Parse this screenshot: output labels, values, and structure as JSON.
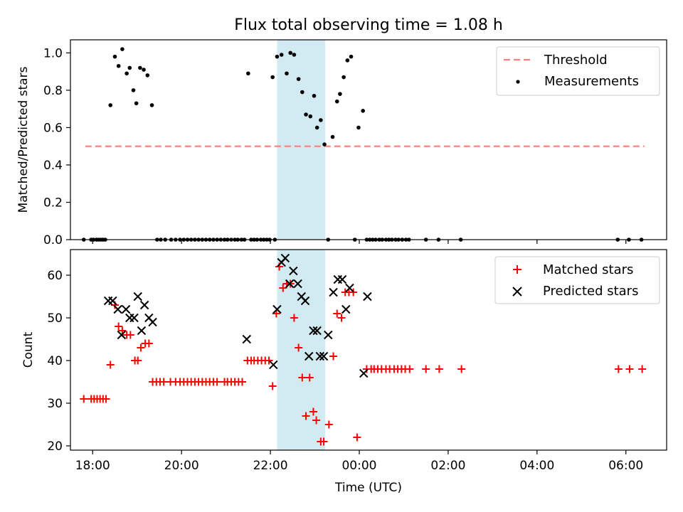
{
  "title": "Flux total observing time = 1.08 h",
  "colors": {
    "threshold": "#ff7f7f",
    "measurement": "#000000",
    "matched": "#ff0000",
    "predicted": "#000000",
    "highlight": "#add8e6"
  },
  "chart_data": [
    {
      "type": "scatter",
      "ylabel": "Matched/Predicted stars",
      "xlim": [
        "17:30",
        "06:55"
      ],
      "ylim": [
        0,
        1.07
      ],
      "yticks": [
        "0.0",
        "0.2",
        "0.4",
        "0.6",
        "0.8",
        "1.0"
      ],
      "highlight_span": [
        "22:09",
        "23:14"
      ],
      "legend": {
        "placement": "top-right",
        "entries": [
          "Threshold",
          "Measurements"
        ]
      },
      "threshold": {
        "name": "Threshold",
        "y": 0.5,
        "x": [
          "17:50",
          "06:25"
        ],
        "style": "dashed"
      },
      "series": [
        {
          "name": "Measurements",
          "marker": "dot",
          "points": [
            [
              "17:48",
              0
            ],
            [
              "17:58",
              0
            ],
            [
              "18:01",
              0
            ],
            [
              "18:05",
              0
            ],
            [
              "18:08",
              0
            ],
            [
              "18:11",
              0
            ],
            [
              "18:14",
              0
            ],
            [
              "18:17",
              0
            ],
            [
              "18:24",
              0.72
            ],
            [
              "18:30",
              0.98
            ],
            [
              "18:35",
              0.93
            ],
            [
              "18:40",
              1.02
            ],
            [
              "18:46",
              0.89
            ],
            [
              "18:50",
              0.92
            ],
            [
              "18:55",
              0.8
            ],
            [
              "18:59",
              0.73
            ],
            [
              "19:04",
              0.92
            ],
            [
              "19:09",
              0.91
            ],
            [
              "19:14",
              0.88
            ],
            [
              "19:20",
              0.72
            ],
            [
              "19:27",
              0
            ],
            [
              "19:32",
              0
            ],
            [
              "19:38",
              0
            ],
            [
              "19:46",
              0
            ],
            [
              "19:52",
              0
            ],
            [
              "19:58",
              0
            ],
            [
              "20:03",
              0
            ],
            [
              "20:08",
              0
            ],
            [
              "20:13",
              0
            ],
            [
              "20:18",
              0
            ],
            [
              "20:23",
              0
            ],
            [
              "20:28",
              0
            ],
            [
              "20:33",
              0
            ],
            [
              "20:38",
              0
            ],
            [
              "20:43",
              0
            ],
            [
              "20:48",
              0
            ],
            [
              "20:53",
              0
            ],
            [
              "20:58",
              0
            ],
            [
              "21:02",
              0
            ],
            [
              "21:07",
              0
            ],
            [
              "21:12",
              0
            ],
            [
              "21:16",
              0
            ],
            [
              "21:21",
              0
            ],
            [
              "21:25",
              0
            ],
            [
              "21:30",
              0.89
            ],
            [
              "21:34",
              0
            ],
            [
              "21:38",
              0
            ],
            [
              "21:42",
              0
            ],
            [
              "21:47",
              0
            ],
            [
              "21:51",
              0
            ],
            [
              "21:55",
              0
            ],
            [
              "21:59",
              0
            ],
            [
              "22:03",
              0.87
            ],
            [
              "22:06",
              0
            ],
            [
              "22:09",
              0.98
            ],
            [
              "22:15",
              0.99
            ],
            [
              "22:22",
              0.89
            ],
            [
              "22:27",
              1.0
            ],
            [
              "22:32",
              0.99
            ],
            [
              "22:38",
              0.86
            ],
            [
              "22:43",
              0.79
            ],
            [
              "22:48",
              0.67
            ],
            [
              "22:54",
              0.66
            ],
            [
              "22:59",
              0.77
            ],
            [
              "23:03",
              0.6
            ],
            [
              "23:08",
              0.64
            ],
            [
              "23:13",
              0.51
            ],
            [
              "23:18",
              0
            ],
            [
              "23:24",
              0.55
            ],
            [
              "23:30",
              0.74
            ],
            [
              "23:34",
              0.78
            ],
            [
              "23:39",
              0.87
            ],
            [
              "23:44",
              0.96
            ],
            [
              "23:49",
              0.98
            ],
            [
              "23:54",
              0
            ],
            [
              "23:59",
              0.6
            ],
            [
              "00:05",
              0.69
            ],
            [
              "00:10",
              0
            ],
            [
              "00:14",
              0
            ],
            [
              "00:18",
              0
            ],
            [
              "00:22",
              0
            ],
            [
              "00:27",
              0
            ],
            [
              "00:31",
              0
            ],
            [
              "00:36",
              0
            ],
            [
              "00:40",
              0
            ],
            [
              "00:44",
              0
            ],
            [
              "00:49",
              0
            ],
            [
              "00:53",
              0
            ],
            [
              "00:58",
              0
            ],
            [
              "01:03",
              0
            ],
            [
              "01:07",
              0
            ],
            [
              "01:30",
              0
            ],
            [
              "01:47",
              0
            ],
            [
              "02:17",
              0
            ],
            [
              "05:49",
              0
            ],
            [
              "06:04",
              0
            ],
            [
              "06:21",
              0
            ]
          ]
        }
      ]
    },
    {
      "type": "scatter",
      "xlabel": "Time (UTC)",
      "ylabel": "Count",
      "xlim": [
        "17:30",
        "06:55"
      ],
      "ylim": [
        19,
        66
      ],
      "xticks": [
        "18:00",
        "20:00",
        "22:00",
        "00:00",
        "02:00",
        "04:00",
        "06:00"
      ],
      "yticks": [
        "20",
        "30",
        "40",
        "50",
        "60"
      ],
      "highlight_span": [
        "22:09",
        "23:14"
      ],
      "legend": {
        "placement": "top-right",
        "entries": [
          "Matched stars",
          "Predicted stars"
        ]
      },
      "series": [
        {
          "name": "Matched stars",
          "marker": "plus",
          "points": [
            [
              "17:48",
              31
            ],
            [
              "17:58",
              31
            ],
            [
              "18:02",
              31
            ],
            [
              "18:06",
              31
            ],
            [
              "18:10",
              31
            ],
            [
              "18:14",
              31
            ],
            [
              "18:18",
              31
            ],
            [
              "18:24",
              39
            ],
            [
              "18:30",
              53
            ],
            [
              "18:35",
              48
            ],
            [
              "18:40",
              47
            ],
            [
              "18:46",
              46
            ],
            [
              "18:51",
              46
            ],
            [
              "18:57",
              40
            ],
            [
              "19:01",
              40
            ],
            [
              "19:05",
              43
            ],
            [
              "19:11",
              44
            ],
            [
              "19:16",
              44
            ],
            [
              "19:21",
              35
            ],
            [
              "19:26",
              35
            ],
            [
              "19:31",
              35
            ],
            [
              "19:36",
              35
            ],
            [
              "19:45",
              35
            ],
            [
              "19:52",
              35
            ],
            [
              "19:58",
              35
            ],
            [
              "20:03",
              35
            ],
            [
              "20:08",
              35
            ],
            [
              "20:13",
              35
            ],
            [
              "20:18",
              35
            ],
            [
              "20:23",
              35
            ],
            [
              "20:28",
              35
            ],
            [
              "20:33",
              35
            ],
            [
              "20:38",
              35
            ],
            [
              "20:43",
              35
            ],
            [
              "20:48",
              35
            ],
            [
              "20:58",
              35
            ],
            [
              "21:02",
              35
            ],
            [
              "21:07",
              35
            ],
            [
              "21:12",
              35
            ],
            [
              "21:17",
              35
            ],
            [
              "21:22",
              35
            ],
            [
              "21:29",
              40
            ],
            [
              "21:34",
              40
            ],
            [
              "21:38",
              40
            ],
            [
              "21:43",
              40
            ],
            [
              "21:48",
              40
            ],
            [
              "21:53",
              40
            ],
            [
              "21:58",
              40
            ],
            [
              "22:03",
              34
            ],
            [
              "22:08",
              51
            ],
            [
              "22:12",
              62
            ],
            [
              "22:17",
              57
            ],
            [
              "22:22",
              58
            ],
            [
              "22:27",
              58
            ],
            [
              "22:32",
              50
            ],
            [
              "22:38",
              43
            ],
            [
              "22:43",
              36
            ],
            [
              "22:48",
              27
            ],
            [
              "22:53",
              36
            ],
            [
              "22:58",
              28
            ],
            [
              "23:02",
              26
            ],
            [
              "23:08",
              21
            ],
            [
              "23:12",
              21
            ],
            [
              "23:19",
              25
            ],
            [
              "23:25",
              41
            ],
            [
              "23:30",
              51
            ],
            [
              "23:36",
              50
            ],
            [
              "23:41",
              56
            ],
            [
              "23:46",
              56
            ],
            [
              "23:52",
              56
            ],
            [
              "23:57",
              22
            ],
            [
              "00:10",
              38
            ],
            [
              "00:16",
              38
            ],
            [
              "00:20",
              38
            ],
            [
              "00:25",
              38
            ],
            [
              "00:30",
              38
            ],
            [
              "00:36",
              38
            ],
            [
              "00:41",
              38
            ],
            [
              "00:47",
              38
            ],
            [
              "00:52",
              38
            ],
            [
              "00:57",
              38
            ],
            [
              "01:02",
              38
            ],
            [
              "01:08",
              38
            ],
            [
              "01:30",
              38
            ],
            [
              "01:48",
              38
            ],
            [
              "02:18",
              38
            ],
            [
              "05:50",
              38
            ],
            [
              "06:05",
              38
            ],
            [
              "06:22",
              38
            ]
          ]
        },
        {
          "name": "Predicted stars",
          "marker": "x",
          "points": [
            [
              "18:21",
              54
            ],
            [
              "18:27",
              54
            ],
            [
              "18:34",
              52
            ],
            [
              "18:39",
              46
            ],
            [
              "18:45",
              52
            ],
            [
              "18:50",
              50
            ],
            [
              "18:56",
              50
            ],
            [
              "19:01",
              55
            ],
            [
              "19:06",
              47
            ],
            [
              "19:10",
              53
            ],
            [
              "19:16",
              50
            ],
            [
              "19:21",
              49
            ],
            [
              "21:28",
              45
            ],
            [
              "22:04",
              39
            ],
            [
              "22:09",
              52
            ],
            [
              "22:15",
              63
            ],
            [
              "22:20",
              64
            ],
            [
              "22:26",
              58
            ],
            [
              "22:31",
              61
            ],
            [
              "22:37",
              58
            ],
            [
              "22:42",
              55
            ],
            [
              "22:47",
              54
            ],
            [
              "22:52",
              41
            ],
            [
              "22:58",
              47
            ],
            [
              "23:03",
              47
            ],
            [
              "23:07",
              41
            ],
            [
              "23:12",
              41
            ],
            [
              "23:18",
              46
            ],
            [
              "23:25",
              56
            ],
            [
              "23:31",
              59
            ],
            [
              "23:37",
              59
            ],
            [
              "23:42",
              52
            ],
            [
              "23:47",
              57
            ],
            [
              "00:06",
              37
            ],
            [
              "00:11",
              55
            ]
          ]
        }
      ]
    }
  ]
}
